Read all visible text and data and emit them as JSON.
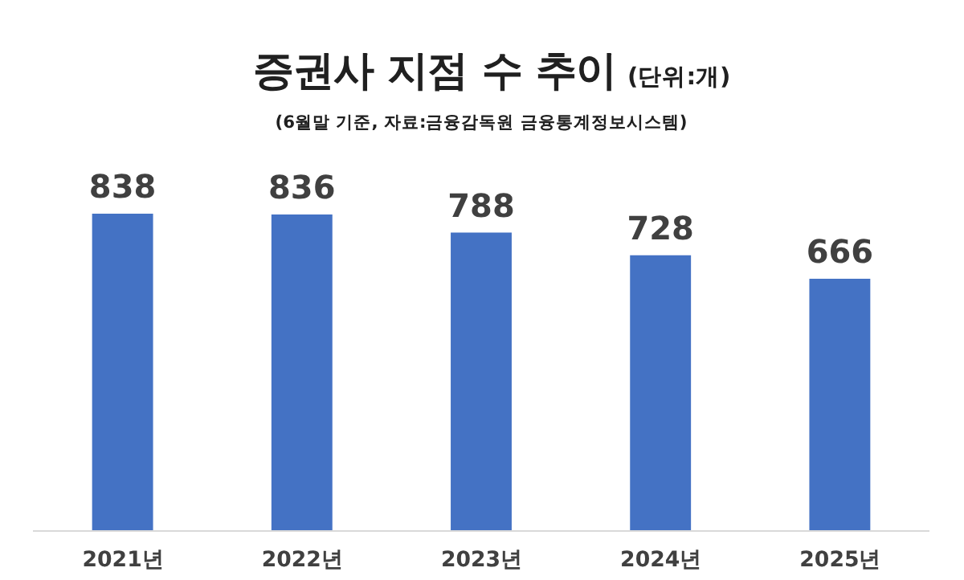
{
  "chart_data": {
    "type": "bar",
    "title": "증권사 지점 수 추이",
    "subtitle": "(6월말 기준, 자료:금융감독원 금융통계정보시스템)",
    "annotations": [
      "(단위:개)"
    ],
    "categories": [
      "2021년",
      "2022년",
      "2023년",
      "2024년",
      "2025년"
    ],
    "values": [
      838,
      836,
      788,
      728,
      666
    ],
    "color": "#4472c4",
    "data_labels": true,
    "tick_labels": "x"
  }
}
